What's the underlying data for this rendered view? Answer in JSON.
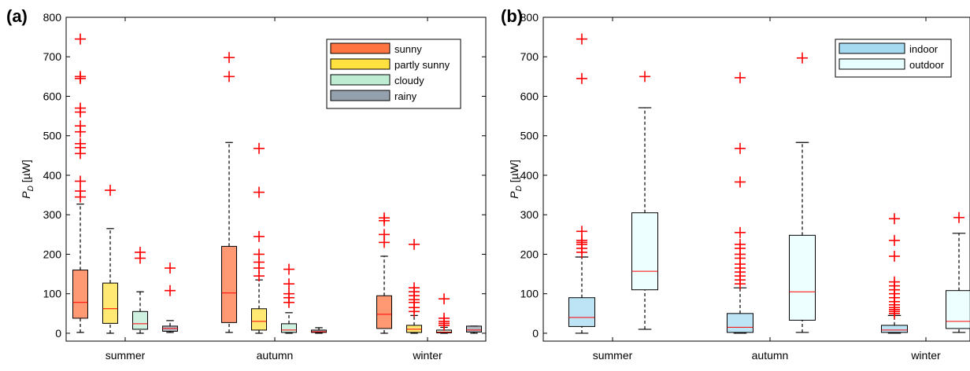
{
  "chart_data": [
    {
      "panel_label": "(a)",
      "type": "boxplot",
      "ylabel_main": "P",
      "ylabel_sub": "D",
      "ylabel_unit": " [µW]",
      "ylim": [
        -20,
        800
      ],
      "yticks": [
        0,
        100,
        200,
        300,
        400,
        500,
        600,
        700,
        800
      ],
      "grid": false,
      "legend_position": "top-right",
      "categories": [
        "summer",
        "autumn",
        "winter"
      ],
      "legend": [
        {
          "label": "sunny",
          "color": "#FF4500"
        },
        {
          "label": "partly sunny",
          "color": "#FFD700"
        },
        {
          "label": "cloudy",
          "color": "#A8E6C4"
        },
        {
          "label": "rainy",
          "color": "#708090"
        }
      ],
      "boxes": [
        {
          "category": "summer",
          "series": "sunny",
          "color": "#FF4500",
          "min": 2,
          "q1": 38,
          "median": 78,
          "q3": 160,
          "max": 327,
          "outliers": [
            345,
            360,
            385,
            455,
            470,
            480,
            510,
            525,
            560,
            570,
            645,
            650,
            745
          ]
        },
        {
          "category": "summer",
          "series": "partly sunny",
          "color": "#FFD700",
          "min": 0,
          "q1": 25,
          "median": 62,
          "q3": 127,
          "max": 265,
          "outliers": [
            362
          ]
        },
        {
          "category": "summer",
          "series": "cloudy",
          "color": "#A8E6C4",
          "min": 0,
          "q1": 10,
          "median": 24,
          "q3": 55,
          "max": 105,
          "outliers": [
            190,
            205
          ]
        },
        {
          "category": "summer",
          "series": "rainy",
          "color": "#708090",
          "min": 2,
          "q1": 5,
          "median": 12,
          "q3": 18,
          "max": 32,
          "outliers": [
            108,
            165
          ]
        },
        {
          "category": "autumn",
          "series": "sunny",
          "color": "#FF4500",
          "min": 2,
          "q1": 27,
          "median": 102,
          "q3": 220,
          "max": 483,
          "outliers": [
            650,
            698
          ]
        },
        {
          "category": "autumn",
          "series": "partly sunny",
          "color": "#FFD700",
          "min": 0,
          "q1": 8,
          "median": 30,
          "q3": 62,
          "max": 135,
          "outliers": [
            145,
            165,
            180,
            200,
            245,
            357,
            468
          ]
        },
        {
          "category": "autumn",
          "series": "cloudy",
          "color": "#A8E6C4",
          "min": 0,
          "q1": 2,
          "median": 8,
          "q3": 24,
          "max": 52,
          "outliers": [
            78,
            90,
            100,
            125,
            162
          ]
        },
        {
          "category": "autumn",
          "series": "rainy",
          "color": "#708090",
          "min": 0,
          "q1": 2,
          "median": 4,
          "q3": 8,
          "max": 14,
          "outliers": []
        },
        {
          "category": "winter",
          "series": "sunny",
          "color": "#FF4500",
          "min": 0,
          "q1": 12,
          "median": 48,
          "q3": 95,
          "max": 195,
          "outliers": [
            230,
            250,
            285,
            292
          ]
        },
        {
          "category": "winter",
          "series": "partly sunny",
          "color": "#FFD700",
          "min": 0,
          "q1": 2,
          "median": 10,
          "q3": 20,
          "max": 45,
          "outliers": [
            55,
            65,
            78,
            85,
            95,
            105,
            115,
            225
          ]
        },
        {
          "category": "winter",
          "series": "cloudy",
          "color": "#A8E6C4",
          "min": 0,
          "q1": 1,
          "median": 3,
          "q3": 8,
          "max": 15,
          "outliers": [
            20,
            25,
            30,
            38,
            87
          ]
        },
        {
          "category": "winter",
          "series": "rainy",
          "color": "#708090",
          "min": 0,
          "q1": 3,
          "median": 8,
          "q3": 18,
          "max": 18,
          "outliers": []
        }
      ]
    },
    {
      "panel_label": "(b)",
      "type": "boxplot",
      "ylabel_main": "P",
      "ylabel_sub": "D",
      "ylabel_unit": " [µW]",
      "ylim": [
        -20,
        800
      ],
      "yticks": [
        0,
        100,
        200,
        300,
        400,
        500,
        600,
        700,
        800
      ],
      "grid": false,
      "legend_position": "top-right",
      "categories": [
        "summer",
        "autumn",
        "winter"
      ],
      "legend": [
        {
          "label": "indoor",
          "color": "#87CEEB"
        },
        {
          "label": "outdoor",
          "color": "#E0FFFF"
        }
      ],
      "boxes": [
        {
          "category": "summer",
          "series": "indoor",
          "color": "#87CEEB",
          "min": 0,
          "q1": 17,
          "median": 40,
          "q3": 90,
          "max": 193,
          "outliers": [
            205,
            215,
            225,
            230,
            235,
            258,
            645,
            745
          ]
        },
        {
          "category": "summer",
          "series": "outdoor",
          "color": "#E0FFFF",
          "min": 10,
          "q1": 110,
          "median": 157,
          "q3": 305,
          "max": 571,
          "outliers": [
            650
          ]
        },
        {
          "category": "autumn",
          "series": "indoor",
          "color": "#87CEEB",
          "min": 0,
          "q1": 2,
          "median": 15,
          "q3": 50,
          "max": 115,
          "outliers": [
            125,
            135,
            145,
            155,
            165,
            175,
            190,
            200,
            215,
            225,
            255,
            383,
            468,
            647
          ]
        },
        {
          "category": "autumn",
          "series": "outdoor",
          "color": "#E0FFFF",
          "min": 2,
          "q1": 33,
          "median": 105,
          "q3": 248,
          "max": 483,
          "outliers": [
            697
          ]
        },
        {
          "category": "winter",
          "series": "indoor",
          "color": "#87CEEB",
          "min": 0,
          "q1": 2,
          "median": 8,
          "q3": 20,
          "max": 45,
          "outliers": [
            50,
            55,
            60,
            65,
            72,
            80,
            90,
            100,
            110,
            120,
            130,
            195,
            235,
            290
          ]
        },
        {
          "category": "winter",
          "series": "outdoor",
          "color": "#E0FFFF",
          "min": 2,
          "q1": 12,
          "median": 30,
          "q3": 108,
          "max": 253,
          "outliers": [
            293
          ]
        }
      ]
    }
  ]
}
